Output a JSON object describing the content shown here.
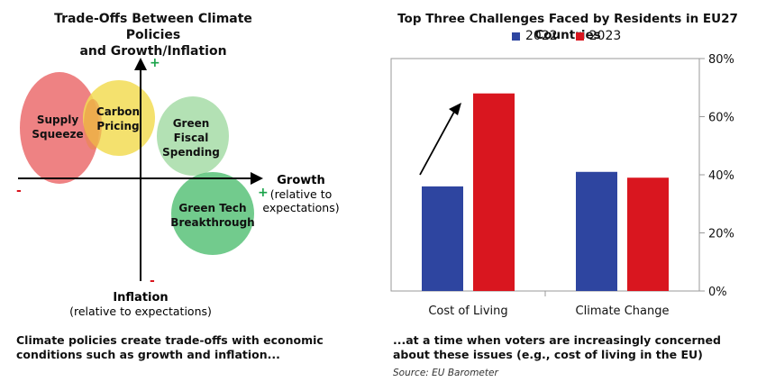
{
  "left": {
    "title_line1": "Trade-Offs Between Climate Policies",
    "title_line2": "and Growth/Inflation",
    "x_axis_label": "Growth",
    "x_axis_sub1": "(relative to",
    "x_axis_sub2": "expectations)",
    "y_axis_label": "Inflation",
    "y_axis_sub": "(relative to expectations)",
    "plus_sign": "+",
    "minus_sign": "-",
    "bubbles": [
      {
        "line1": "Supply",
        "line2": "Squeeze",
        "color": "#e8585a"
      },
      {
        "line1": "Carbon",
        "line2": "Pricing",
        "color": "#f2dc55"
      },
      {
        "line1": "Green",
        "line2": "Fiscal",
        "line3": "Spending",
        "color": "#a6dca7"
      },
      {
        "line1": "Green Tech",
        "line2": "Breakthrough",
        "color": "#59c279"
      }
    ],
    "caption_line1": "Climate policies create trade-offs with economic",
    "caption_line2": "conditions such as growth and inflation..."
  },
  "right": {
    "caption_line1": "...at a time when voters are increasingly concerned",
    "caption_line2": "about these issues (e.g., cost of living in the EU)",
    "source": "Source: EU Barometer"
  },
  "colors": {
    "series_2022": "#2e45a0",
    "series_2023": "#d9161f",
    "plus": "#1aa34a",
    "minus": "#d9161f"
  },
  "chart_data": {
    "type": "bar",
    "title": "Top Three Challenges Faced by Residents in EU27 Countries",
    "categories": [
      "Cost of Living",
      "Climate Change"
    ],
    "series": [
      {
        "name": "2022",
        "values": [
          36,
          41
        ]
      },
      {
        "name": "2023",
        "values": [
          68,
          39
        ]
      }
    ],
    "ylim": [
      0,
      80
    ],
    "yticks": [
      "0%",
      "20%",
      "40%",
      "60%",
      "80%"
    ],
    "ytick_values": [
      0,
      20,
      40,
      60,
      80
    ],
    "y_axis_side": "right",
    "grid": false,
    "legend": "top"
  }
}
